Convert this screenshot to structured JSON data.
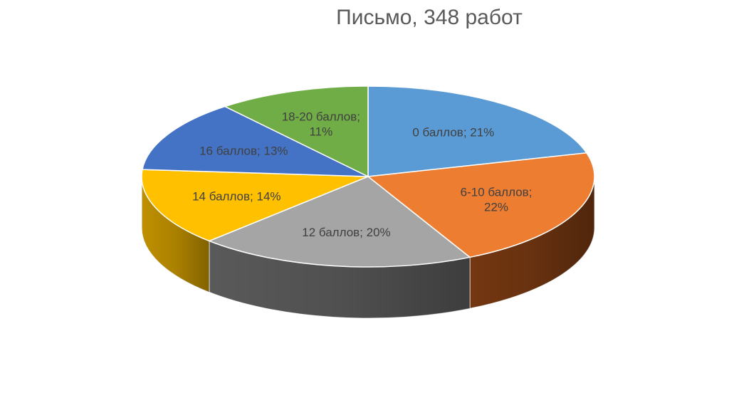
{
  "chart_data": {
    "type": "pie",
    "title": "Письмо, 348 работ",
    "slices": [
      {
        "label": "0 баллов",
        "value": 21,
        "display": [
          "0 баллов;  21%"
        ],
        "color": "#5B9BD5",
        "side": "#3E6E9C"
      },
      {
        "label": "6-10 баллов",
        "value": 22,
        "display": [
          "6-10 баллов;",
          "22%"
        ],
        "color": "#ED7D31",
        "side": "#7A3A12"
      },
      {
        "label": "12 баллов",
        "value": 20,
        "display": [
          "12 баллов; 20%"
        ],
        "color": "#A5A5A5",
        "side": "#5E5E5E"
      },
      {
        "label": "14 баллов",
        "value": 14,
        "display": [
          "14 баллов;  14%"
        ],
        "color": "#FFC000",
        "side": "#C99700"
      },
      {
        "label": "16 баллов",
        "value": 13,
        "display": [
          "16 баллов;  13%"
        ],
        "color": "#4472C4",
        "side": "#2C4C85"
      },
      {
        "label": "18-20 баллов",
        "value": 11,
        "display": [
          "18-20 баллов;",
          "11%"
        ],
        "color": "#70AD47",
        "side": "#4A7A2E"
      }
    ]
  }
}
